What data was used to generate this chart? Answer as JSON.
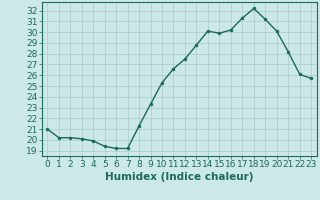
{
  "x": [
    0,
    1,
    2,
    3,
    4,
    5,
    6,
    7,
    8,
    9,
    10,
    11,
    12,
    13,
    14,
    15,
    16,
    17,
    18,
    19,
    20,
    21,
    22,
    23
  ],
  "y": [
    21.0,
    20.2,
    20.2,
    20.1,
    19.9,
    19.4,
    19.2,
    19.2,
    21.3,
    23.3,
    25.3,
    26.6,
    27.5,
    28.8,
    30.1,
    29.9,
    30.2,
    31.3,
    32.2,
    31.2,
    30.1,
    28.2,
    26.1,
    25.7
  ],
  "line_color": "#1a6b5a",
  "marker": "o",
  "marker_size": 2.0,
  "xlabel": "Humidex (Indice chaleur)",
  "xlim": [
    -0.5,
    23.5
  ],
  "ylim": [
    18.5,
    32.8
  ],
  "yticks": [
    19,
    20,
    21,
    22,
    23,
    24,
    25,
    26,
    27,
    28,
    29,
    30,
    31,
    32
  ],
  "xticks": [
    0,
    1,
    2,
    3,
    4,
    5,
    6,
    7,
    8,
    9,
    10,
    11,
    12,
    13,
    14,
    15,
    16,
    17,
    18,
    19,
    20,
    21,
    22,
    23
  ],
  "bg_color": "#cce8e8",
  "grid_color": "#aacccc",
  "text_color": "#1a6b5a",
  "tick_fontsize": 6.5,
  "xlabel_fontsize": 7.5,
  "line_width": 1.0
}
